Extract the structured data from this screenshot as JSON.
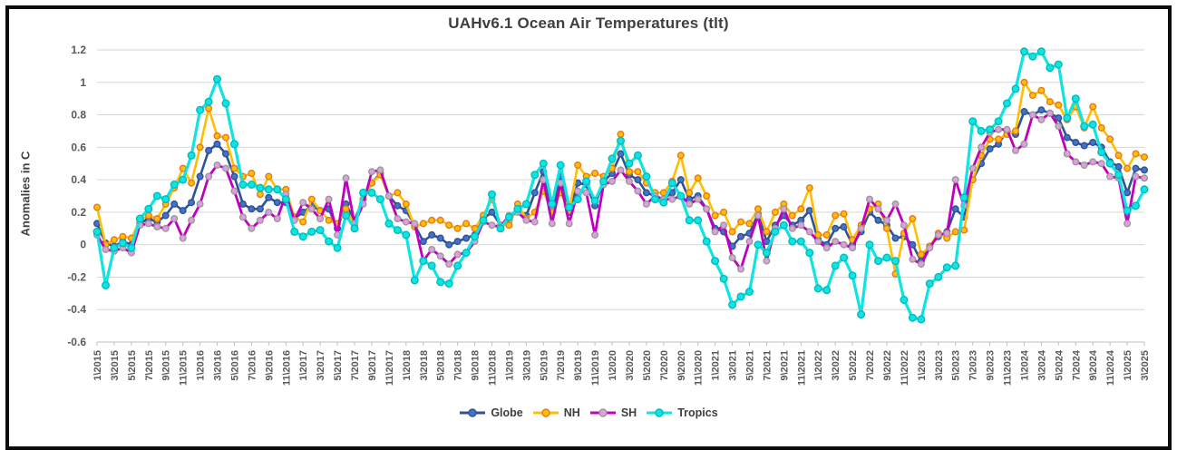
{
  "title": "UAHv6.1 Ocean Air Temperatures (tlt)",
  "y_axis": {
    "title": "Anomalies in C",
    "tick_labels": [
      "1.2",
      "1",
      "0.8",
      "0.6",
      "0.4",
      "0.2",
      "0",
      "-0.2",
      "-0.4",
      "-0.6"
    ],
    "min": -0.6,
    "max": 1.2,
    "step": 0.2
  },
  "legend": [
    {
      "label": "Globe"
    },
    {
      "label": "NH"
    },
    {
      "label": "SH"
    },
    {
      "label": "Tropics"
    }
  ],
  "colors": {
    "grid": "#d6d6d6",
    "axis": "#bfbfbf",
    "tick_text": "#595959",
    "title_text": "#3f3f3f"
  },
  "chart_data": {
    "type": "line",
    "title": "UAHv6.1 Ocean Air Temperatures (tlt)",
    "ylabel": "Anomalies in C",
    "ylim": [
      -0.6,
      1.2
    ],
    "grid": true,
    "legend_position": "bottom",
    "x_start": "1\\2015",
    "x_end": "3\\2025",
    "label_every": 2,
    "x_tick_labels": [
      "1\\2015",
      "3\\2015",
      "5\\2015",
      "7\\2015",
      "9\\2015",
      "11\\2015",
      "1\\2016",
      "3\\2016",
      "5\\2016",
      "7\\2016",
      "9\\2016",
      "11\\2016",
      "1\\2017",
      "3\\2017",
      "5\\2017",
      "7\\2017",
      "9\\2017",
      "11\\2017",
      "1\\2018",
      "3\\2018",
      "5\\2018",
      "7\\2018",
      "9\\2018",
      "11\\2018",
      "1\\2019",
      "3\\2019",
      "5\\2019",
      "7\\2019",
      "9\\2019",
      "11\\2019",
      "1\\2020",
      "3\\2020",
      "5\\2020",
      "7\\2020",
      "9\\2020",
      "11\\2020",
      "1\\2021",
      "3\\2021",
      "5\\2021",
      "7\\2021",
      "9\\2021",
      "11\\2021",
      "1\\2022",
      "3\\2022",
      "5\\2022",
      "7\\2022",
      "9\\2022",
      "11\\2022",
      "1\\2023",
      "3\\2023",
      "5\\2023",
      "7\\2023",
      "9\\2023",
      "11\\2023",
      "1\\2024",
      "3\\2024",
      "5\\2024",
      "7\\2024",
      "9\\2024",
      "11\\2024",
      "1\\2025",
      "3\\2025"
    ],
    "series": [
      {
        "name": "Globe",
        "line_color": "#2e5295",
        "marker_fill": "#4472c4",
        "marker_stroke": "#2e5295",
        "line_width": 2.6,
        "marker_r": 3.3,
        "values": [
          0.13,
          0.01,
          -0.01,
          0.02,
          0.0,
          0.13,
          0.16,
          0.14,
          0.18,
          0.25,
          0.21,
          0.26,
          0.42,
          0.58,
          0.62,
          0.56,
          0.42,
          0.25,
          0.22,
          0.22,
          0.29,
          0.26,
          0.26,
          0.16,
          0.2,
          0.24,
          0.21,
          0.22,
          0.1,
          0.25,
          0.15,
          0.28,
          0.38,
          0.44,
          0.3,
          0.24,
          0.21,
          0.12,
          0.02,
          0.06,
          0.04,
          0.0,
          0.02,
          0.04,
          0.06,
          0.16,
          0.2,
          0.12,
          0.15,
          0.22,
          0.18,
          0.32,
          0.45,
          0.21,
          0.42,
          0.2,
          0.38,
          0.37,
          0.24,
          0.39,
          0.44,
          0.56,
          0.43,
          0.4,
          0.32,
          0.3,
          0.28,
          0.32,
          0.4,
          0.28,
          0.3,
          0.22,
          0.1,
          0.08,
          -0.01,
          0.05,
          0.07,
          0.19,
          0.02,
          0.12,
          0.18,
          0.12,
          0.15,
          0.21,
          0.03,
          0.0,
          0.1,
          0.11,
          0.0,
          0.08,
          0.2,
          0.15,
          0.12,
          0.04,
          0.05,
          0.0,
          -0.1,
          -0.01,
          0.05,
          0.08,
          0.22,
          0.17,
          0.4,
          0.5,
          0.59,
          0.62,
          0.7,
          0.68,
          0.82,
          0.8,
          0.83,
          0.81,
          0.78,
          0.66,
          0.63,
          0.61,
          0.63,
          0.6,
          0.51,
          0.48,
          0.32,
          0.47,
          0.46
        ]
      },
      {
        "name": "NH",
        "line_color": "#ffbf00",
        "marker_fill": "#ffc000",
        "marker_stroke": "#e87722",
        "line_width": 2.6,
        "marker_r": 3.3,
        "values": [
          0.23,
          0.0,
          0.03,
          0.05,
          0.04,
          0.15,
          0.18,
          0.16,
          0.25,
          0.35,
          0.47,
          0.38,
          0.6,
          0.84,
          0.67,
          0.66,
          0.47,
          0.42,
          0.44,
          0.31,
          0.42,
          0.34,
          0.34,
          0.17,
          0.14,
          0.28,
          0.21,
          0.15,
          0.13,
          0.22,
          0.12,
          0.28,
          0.38,
          0.43,
          0.3,
          0.32,
          0.25,
          0.11,
          0.13,
          0.15,
          0.15,
          0.12,
          0.1,
          0.13,
          0.1,
          0.18,
          0.28,
          0.12,
          0.12,
          0.25,
          0.16,
          0.2,
          0.33,
          0.2,
          0.32,
          0.21,
          0.49,
          0.42,
          0.44,
          0.42,
          0.47,
          0.68,
          0.45,
          0.45,
          0.38,
          0.32,
          0.32,
          0.39,
          0.55,
          0.32,
          0.41,
          0.3,
          0.18,
          0.2,
          0.08,
          0.14,
          0.13,
          0.22,
          0.08,
          0.2,
          0.25,
          0.18,
          0.22,
          0.35,
          0.06,
          0.06,
          0.18,
          0.19,
          0.03,
          0.12,
          0.22,
          0.25,
          0.1,
          -0.18,
          0.07,
          0.16,
          -0.06,
          -0.01,
          0.07,
          0.04,
          0.08,
          0.09,
          0.4,
          0.55,
          0.65,
          0.65,
          0.68,
          0.7,
          1.0,
          0.92,
          0.95,
          0.88,
          0.86,
          0.77,
          0.85,
          0.72,
          0.85,
          0.72,
          0.65,
          0.55,
          0.47,
          0.56,
          0.54
        ]
      },
      {
        "name": "SH",
        "line_color": "#c000c0",
        "marker_fill": "#dda0dd",
        "marker_stroke": "#999999",
        "line_width": 2.8,
        "marker_r": 3.3,
        "values": [
          0.06,
          -0.03,
          -0.04,
          -0.02,
          -0.05,
          0.12,
          0.13,
          0.11,
          0.1,
          0.16,
          0.04,
          0.15,
          0.25,
          0.42,
          0.49,
          0.47,
          0.33,
          0.17,
          0.1,
          0.15,
          0.2,
          0.16,
          0.31,
          0.15,
          0.26,
          0.22,
          0.16,
          0.28,
          0.06,
          0.41,
          0.13,
          0.25,
          0.45,
          0.46,
          0.3,
          0.16,
          0.14,
          0.13,
          -0.1,
          -0.03,
          -0.07,
          -0.12,
          -0.06,
          -0.05,
          0.02,
          0.14,
          0.12,
          0.11,
          0.18,
          0.2,
          0.15,
          0.14,
          0.4,
          0.13,
          0.38,
          0.13,
          0.33,
          0.32,
          0.06,
          0.37,
          0.39,
          0.46,
          0.39,
          0.33,
          0.25,
          0.3,
          0.28,
          0.28,
          0.3,
          0.25,
          0.28,
          0.22,
          0.08,
          0.12,
          -0.08,
          -0.15,
          0.02,
          0.18,
          -0.1,
          0.1,
          0.22,
          0.1,
          0.12,
          0.08,
          0.02,
          -0.02,
          0.02,
          0.0,
          -0.02,
          0.1,
          0.28,
          0.22,
          0.15,
          0.25,
          0.12,
          -0.09,
          -0.12,
          -0.02,
          0.06,
          0.07,
          0.4,
          0.24,
          0.47,
          0.6,
          0.69,
          0.71,
          0.71,
          0.58,
          0.62,
          0.8,
          0.77,
          0.81,
          0.73,
          0.56,
          0.51,
          0.49,
          0.51,
          0.5,
          0.42,
          0.41,
          0.13,
          0.42,
          0.41
        ]
      },
      {
        "name": "Tropics",
        "line_color": "#0fe3e3",
        "marker_fill": "#0fe3e3",
        "marker_stroke": "#00bcbc",
        "line_width": 3.2,
        "marker_r": 3.8,
        "values": [
          0.08,
          -0.25,
          -0.02,
          0.01,
          -0.02,
          0.16,
          0.22,
          0.3,
          0.28,
          0.37,
          0.4,
          0.55,
          0.83,
          0.88,
          1.02,
          0.87,
          0.62,
          0.37,
          0.37,
          0.35,
          0.34,
          0.34,
          0.28,
          0.08,
          0.05,
          0.08,
          0.09,
          0.02,
          -0.02,
          0.18,
          0.1,
          0.32,
          0.32,
          0.28,
          0.13,
          0.09,
          0.06,
          -0.22,
          -0.1,
          -0.13,
          -0.23,
          -0.24,
          -0.13,
          -0.05,
          0.05,
          0.15,
          0.31,
          0.1,
          0.17,
          0.22,
          0.25,
          0.43,
          0.5,
          0.25,
          0.49,
          0.23,
          0.28,
          0.39,
          0.27,
          0.39,
          0.53,
          0.64,
          0.5,
          0.55,
          0.42,
          0.28,
          0.26,
          0.38,
          0.3,
          0.15,
          0.15,
          0.02,
          -0.1,
          -0.21,
          -0.37,
          -0.32,
          -0.29,
          0.0,
          -0.05,
          0.08,
          0.12,
          0.02,
          0.02,
          -0.05,
          -0.27,
          -0.28,
          -0.13,
          -0.08,
          -0.19,
          -0.43,
          0.0,
          -0.1,
          -0.08,
          -0.1,
          -0.34,
          -0.45,
          -0.46,
          -0.24,
          -0.2,
          -0.14,
          -0.13,
          0.29,
          0.76,
          0.7,
          0.71,
          0.76,
          0.87,
          0.96,
          1.19,
          1.16,
          1.19,
          1.09,
          1.11,
          0.78,
          0.9,
          0.73,
          0.74,
          0.57,
          0.5,
          0.43,
          0.21,
          0.24,
          0.34
        ]
      }
    ]
  }
}
